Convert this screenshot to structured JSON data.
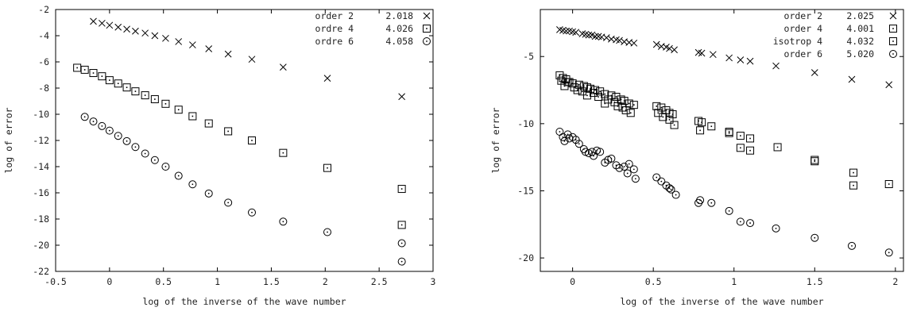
{
  "chart_data": [
    {
      "type": "scatter",
      "title": "",
      "xlabel": "log of the inverse of the wave number",
      "ylabel": "log of error",
      "xlim": [
        -0.5,
        3
      ],
      "ylim": [
        -22,
        -2
      ],
      "xticks": [
        -0.5,
        0,
        0.5,
        1,
        1.5,
        2,
        2.5,
        3
      ],
      "yticks": [
        -22,
        -20,
        -18,
        -16,
        -14,
        -12,
        -10,
        -8,
        -6,
        -4,
        -2
      ],
      "xtick_labels": [
        "-0.5",
        "0",
        "0.5",
        "1",
        "1.5",
        "2",
        "2.5",
        "3"
      ],
      "ytick_labels": [
        "-22",
        "-20",
        "-18",
        "-16",
        "-14",
        "-12",
        "-10",
        "-8",
        "-6",
        "-4",
        "-2"
      ],
      "grid": false,
      "legend_position": "top-right",
      "series": [
        {
          "name": "order 2",
          "slope_label": "2.018",
          "marker": "cross",
          "x": [
            -0.15,
            -0.07,
            0.0,
            0.08,
            0.16,
            0.24,
            0.33,
            0.42,
            0.52,
            0.64,
            0.77,
            0.92,
            1.1,
            1.32,
            1.61,
            2.02,
            2.71
          ],
          "y": [
            -2.9,
            -3.05,
            -3.2,
            -3.35,
            -3.5,
            -3.65,
            -3.8,
            -4.0,
            -4.2,
            -4.45,
            -4.7,
            -5.0,
            -5.4,
            -5.8,
            -6.4,
            -7.25,
            -8.65
          ]
        },
        {
          "name": "ordre 4",
          "slope_label": "4.026",
          "marker": "box",
          "x": [
            -0.3,
            -0.23,
            -0.15,
            -0.07,
            0.0,
            0.08,
            0.16,
            0.24,
            0.33,
            0.42,
            0.52,
            0.64,
            0.77,
            0.92,
            1.1,
            1.32,
            1.61,
            2.02,
            2.71
          ],
          "y": [
            -6.45,
            -6.6,
            -6.85,
            -7.1,
            -7.4,
            -7.65,
            -7.95,
            -8.25,
            -8.55,
            -8.85,
            -9.2,
            -9.65,
            -10.15,
            -10.7,
            -11.3,
            -12.0,
            -12.95,
            -14.1,
            -15.7
          ]
        },
        {
          "name": "ordre 6",
          "slope_label": "4.058",
          "marker": "circle",
          "x": [
            -0.23,
            -0.15,
            -0.07,
            0.0,
            0.08,
            0.16,
            0.24,
            0.33,
            0.42,
            0.52,
            0.64,
            0.77,
            0.92,
            1.1,
            1.32,
            1.61,
            2.02,
            2.71
          ],
          "y": [
            -10.2,
            -10.55,
            -10.9,
            -11.25,
            -11.65,
            -12.05,
            -12.5,
            -13.0,
            -13.5,
            -14.0,
            -14.7,
            -15.35,
            -16.05,
            -16.75,
            -17.5,
            -18.2,
            -19.0,
            -19.85
          ]
        },
        {
          "name": "",
          "slope_label": "",
          "marker": "box",
          "x": [
            2.71
          ],
          "y": [
            -18.45
          ]
        },
        {
          "name": "",
          "slope_label": "",
          "marker": "circle",
          "x": [
            2.71
          ],
          "y": [
            -21.25
          ]
        }
      ]
    },
    {
      "type": "scatter",
      "title": "",
      "xlabel": "log of the inverse of the wave number",
      "ylabel": "log of error",
      "xlim": [
        -0.2,
        2.05
      ],
      "ylim": [
        -21,
        -1.5
      ],
      "xticks": [
        0,
        0.5,
        1,
        1.5,
        2
      ],
      "yticks": [
        -20,
        -15,
        -10,
        -5
      ],
      "xtick_labels": [
        "0",
        "0.5",
        "1",
        "1.5",
        "2"
      ],
      "ytick_labels": [
        "-20",
        "-15",
        "-10",
        "-5"
      ],
      "grid": false,
      "legend_position": "top-right",
      "series": [
        {
          "name": "order 2",
          "slope_label": "2.025",
          "marker": "cross",
          "x": [
            -0.08,
            -0.06,
            -0.04,
            -0.02,
            0.0,
            0.02,
            0.06,
            0.08,
            0.1,
            0.12,
            0.14,
            0.16,
            0.18,
            0.21,
            0.24,
            0.27,
            0.29,
            0.32,
            0.35,
            0.38,
            0.52,
            0.55,
            0.58,
            0.6,
            0.63,
            0.78,
            0.8,
            0.87,
            0.97,
            1.04,
            1.1,
            1.26,
            1.5,
            1.73,
            1.96
          ],
          "y": [
            -3.0,
            -3.05,
            -3.1,
            -3.1,
            -3.15,
            -3.2,
            -3.3,
            -3.35,
            -3.4,
            -3.4,
            -3.5,
            -3.5,
            -3.55,
            -3.6,
            -3.7,
            -3.75,
            -3.8,
            -3.9,
            -3.95,
            -4.0,
            -4.1,
            -4.25,
            -4.3,
            -4.4,
            -4.5,
            -4.7,
            -4.75,
            -4.85,
            -5.1,
            -5.25,
            -5.35,
            -5.7,
            -6.2,
            -6.7,
            -7.1
          ]
        },
        {
          "name": "order 4",
          "slope_label": "4.001",
          "marker": "box",
          "x": [
            -0.08,
            -0.06,
            -0.04,
            -0.02,
            0.0,
            0.04,
            0.07,
            0.09,
            0.11,
            0.14,
            0.17,
            0.2,
            0.24,
            0.27,
            0.3,
            0.32,
            0.35,
            0.38,
            0.52,
            0.55,
            0.58,
            0.6,
            0.62,
            0.78,
            0.8,
            0.86,
            0.97,
            1.04,
            1.1,
            1.27,
            1.5,
            1.74,
            1.96
          ],
          "y": [
            -6.4,
            -6.6,
            -6.7,
            -6.9,
            -7.0,
            -7.1,
            -7.2,
            -7.3,
            -7.4,
            -7.5,
            -7.6,
            -7.8,
            -7.9,
            -8.0,
            -8.2,
            -8.3,
            -8.5,
            -8.6,
            -8.7,
            -8.8,
            -9.0,
            -9.2,
            -9.3,
            -9.8,
            -9.9,
            -10.2,
            -10.6,
            -10.9,
            -11.1,
            -11.75,
            -12.7,
            -13.65,
            -14.5
          ]
        },
        {
          "name": "isotrop 4",
          "slope_label": "4.032",
          "marker": "box",
          "x": [
            -0.07,
            -0.05,
            -0.03,
            0.01,
            0.03,
            0.06,
            0.09,
            0.13,
            0.16,
            0.2,
            0.22,
            0.26,
            0.28,
            0.31,
            0.33,
            0.36,
            0.53,
            0.56,
            0.6,
            0.63,
            0.79,
            0.97,
            1.04,
            1.1,
            1.5,
            1.74
          ],
          "y": [
            -6.8,
            -7.2,
            -6.9,
            -7.3,
            -7.5,
            -7.6,
            -7.9,
            -7.7,
            -8.0,
            -8.5,
            -8.2,
            -8.4,
            -8.7,
            -8.8,
            -9.0,
            -9.2,
            -9.2,
            -9.5,
            -9.7,
            -10.1,
            -10.5,
            -10.7,
            -11.8,
            -12.0,
            -12.8,
            -14.6
          ]
        },
        {
          "name": "order 6",
          "slope_label": "5.020",
          "marker": "circle",
          "x": [
            -0.08,
            -0.06,
            -0.05,
            -0.03,
            -0.02,
            0.0,
            0.02,
            0.04,
            0.07,
            0.08,
            0.1,
            0.12,
            0.13,
            0.15,
            0.17,
            0.2,
            0.22,
            0.24,
            0.27,
            0.29,
            0.32,
            0.34,
            0.35,
            0.38,
            0.39,
            0.52,
            0.55,
            0.58,
            0.6,
            0.61,
            0.64,
            0.78,
            0.79,
            0.86,
            0.97,
            1.04,
            1.1,
            1.26,
            1.5,
            1.73,
            1.96
          ],
          "y": [
            -10.6,
            -11.0,
            -11.3,
            -10.8,
            -11.1,
            -11.0,
            -11.2,
            -11.5,
            -11.9,
            -12.1,
            -12.2,
            -12.1,
            -12.4,
            -12.0,
            -12.1,
            -12.9,
            -12.7,
            -12.6,
            -13.1,
            -13.3,
            -13.2,
            -13.7,
            -13.0,
            -13.4,
            -14.1,
            -14.0,
            -14.3,
            -14.6,
            -14.8,
            -14.9,
            -15.3,
            -15.9,
            -15.7,
            -15.9,
            -16.5,
            -17.3,
            -17.4,
            -17.8,
            -18.5,
            -19.1,
            -19.6
          ]
        }
      ]
    }
  ]
}
